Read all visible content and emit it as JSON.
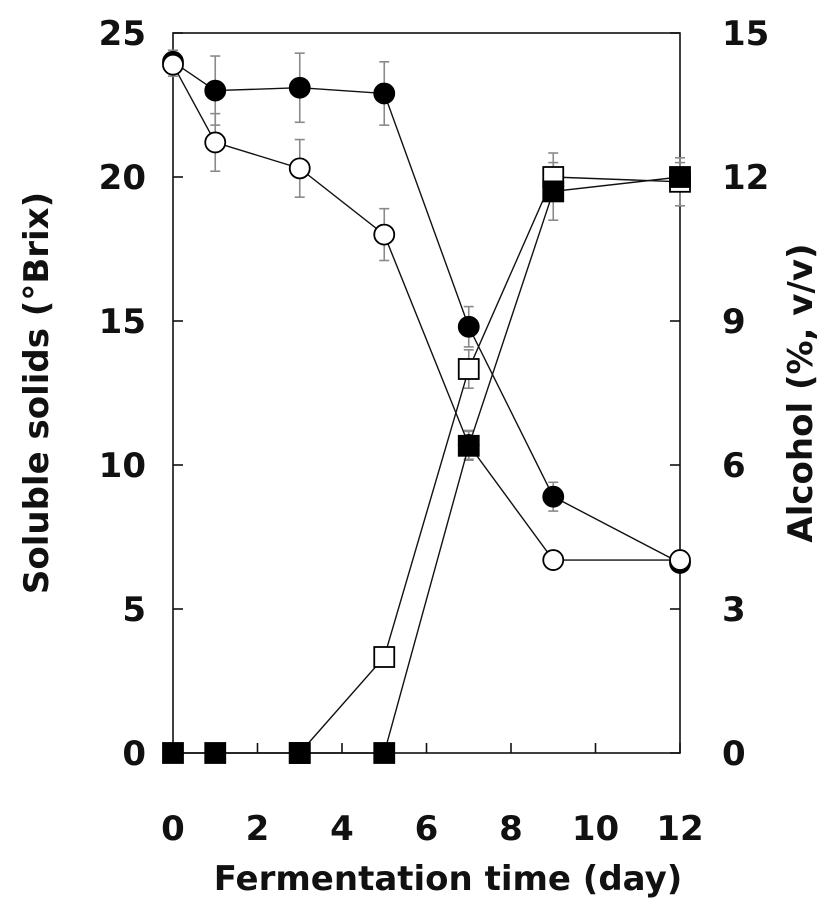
{
  "chart_data": {
    "type": "line",
    "title": "",
    "xlabel": "Fermentation time (day)",
    "ylabel_left": "Soluble solids (°Brix)",
    "ylabel_right": "Alcohol (%, v/v)",
    "xlim": [
      0,
      12
    ],
    "ylim_left": [
      0,
      25
    ],
    "ylim_right": [
      0,
      15
    ],
    "xticks": [
      "0",
      "2",
      "4",
      "6",
      "8",
      "10",
      "12"
    ],
    "yticks_left": [
      "0",
      "5",
      "10",
      "15",
      "20",
      "25"
    ],
    "yticks_right": [
      "0",
      "3",
      "6",
      "9",
      "12",
      "15"
    ],
    "grid": false,
    "legend": "none",
    "series": [
      {
        "axis": "left",
        "marker": "filled-circle",
        "x": [
          0,
          1,
          3,
          5,
          7,
          9,
          12
        ],
        "y": [
          24.0,
          23.0,
          23.1,
          22.9,
          14.8,
          8.9,
          6.6
        ],
        "err": [
          0.4,
          1.2,
          1.2,
          1.1,
          0.7,
          0.5,
          0.2
        ]
      },
      {
        "axis": "left",
        "marker": "open-circle",
        "x": [
          0,
          1,
          3,
          5,
          7,
          9,
          12
        ],
        "y": [
          23.9,
          21.2,
          20.3,
          18.0,
          10.7,
          6.7,
          6.7
        ],
        "err": [
          0.4,
          1.0,
          1.0,
          0.9,
          0.5,
          0.0,
          0.2
        ]
      },
      {
        "axis": "right",
        "marker": "open-square",
        "x": [
          3,
          5,
          7,
          9,
          12
        ],
        "y": [
          0.0,
          2.0,
          8.0,
          12.0,
          11.9
        ],
        "err": [
          0.0,
          0.0,
          0.4,
          0.5,
          0.5
        ]
      },
      {
        "axis": "right",
        "marker": "filled-square",
        "x": [
          0,
          1,
          3,
          5,
          7,
          9,
          12
        ],
        "y": [
          0.0,
          0.0,
          0.0,
          0.0,
          6.4,
          11.7,
          12.0
        ],
        "err": [
          0.0,
          0.0,
          0.0,
          0.0,
          0.3,
          0.6,
          0.3
        ]
      }
    ]
  }
}
